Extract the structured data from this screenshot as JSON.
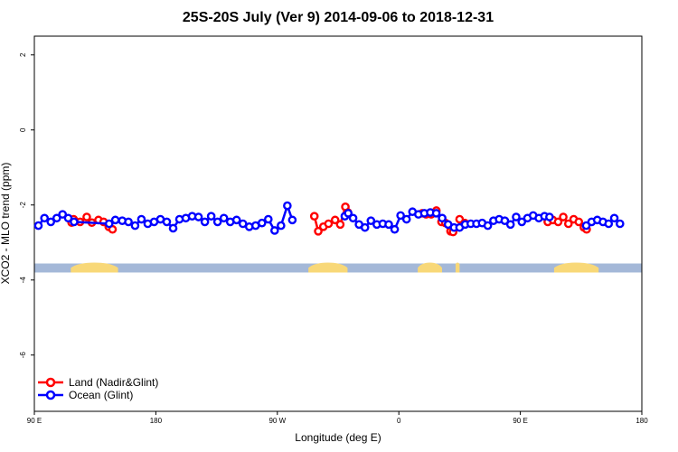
{
  "chart_data": {
    "type": "line",
    "title": "25S-20S July (Ver 9)   2014-09-06 to 2018-12-31",
    "xlabel": "Longitude (deg E)",
    "ylabel": "XCO2 - MLO trend (ppm)",
    "xlim": [
      90,
      540
    ],
    "ylim": [
      -7.5,
      2.5
    ],
    "x_ticks": [
      {
        "value": 90,
        "label": "90 E"
      },
      {
        "value": 180,
        "label": "180"
      },
      {
        "value": 270,
        "label": "90 W"
      },
      {
        "value": 360,
        "label": "0"
      },
      {
        "value": 450,
        "label": "90 E"
      },
      {
        "value": 540,
        "label": "180"
      }
    ],
    "y_ticks": [
      {
        "value": 2,
        "label": "2"
      },
      {
        "value": 0,
        "label": "0"
      },
      {
        "value": -2,
        "label": "-2"
      },
      {
        "value": -4,
        "label": "-4"
      },
      {
        "value": -6,
        "label": "-6"
      }
    ],
    "grid": false,
    "legend_position": "bottom-left",
    "land_ocean_strip": {
      "y_range": [
        -3.8,
        -3.56
      ],
      "ocean_color": "#a4b8d8",
      "land_color": "#f8d878",
      "land_segments": [
        [
          117,
          152
        ],
        [
          293,
          322
        ],
        [
          374,
          392
        ],
        [
          402,
          405
        ],
        [
          475,
          508
        ]
      ]
    },
    "series": [
      {
        "name": "Land (Nadir&Glint)",
        "color": "#ff0000",
        "segments": [
          [
            [
              117.6,
              -2.47
            ],
            [
              119.1,
              -2.38
            ],
            [
              123.9,
              -2.45
            ],
            [
              128.8,
              -2.32
            ],
            [
              132.6,
              -2.47
            ],
            [
              137.5,
              -2.4
            ],
            [
              141.3,
              -2.45
            ],
            [
              145.1,
              -2.58
            ],
            [
              147.9,
              -2.65
            ]
          ],
          [
            [
              297.4,
              -2.3
            ],
            [
              300.3,
              -2.7
            ],
            [
              304.1,
              -2.58
            ],
            [
              307.9,
              -2.5
            ],
            [
              312.8,
              -2.4
            ],
            [
              316.6,
              -2.52
            ],
            [
              320.4,
              -2.05
            ],
            [
              322.3,
              -2.2
            ]
          ],
          [
            [
              377.3,
              -2.22
            ],
            [
              380.2,
              -2.25
            ],
            [
              384.0,
              -2.25
            ],
            [
              387.8,
              -2.15
            ],
            [
              391.6,
              -2.45
            ],
            [
              394.5,
              -2.48
            ],
            [
              398.3,
              -2.7
            ],
            [
              400.2,
              -2.72
            ]
          ],
          [
            [
              405.0,
              -2.38
            ],
            [
              408.8,
              -2.48
            ]
          ],
          [
            [
              470.3,
              -2.45
            ],
            [
              474.1,
              -2.4
            ],
            [
              478.0,
              -2.45
            ],
            [
              481.8,
              -2.32
            ],
            [
              485.6,
              -2.5
            ],
            [
              489.5,
              -2.38
            ],
            [
              493.3,
              -2.45
            ],
            [
              497.1,
              -2.6
            ],
            [
              499.1,
              -2.65
            ]
          ]
        ]
      },
      {
        "name": "Ocean (Glint)",
        "color": "#0000ff",
        "segments": [
          [
            [
              93.0,
              -2.55
            ],
            [
              97.5,
              -2.35
            ],
            [
              102.2,
              -2.45
            ],
            [
              106.6,
              -2.35
            ],
            [
              110.9,
              -2.25
            ],
            [
              115.1,
              -2.35
            ],
            [
              119.4,
              -2.45
            ],
            [
              145.4,
              -2.5
            ],
            [
              150.0,
              -2.4
            ],
            [
              155.1,
              -2.42
            ],
            [
              159.7,
              -2.45
            ],
            [
              164.6,
              -2.55
            ],
            [
              169.3,
              -2.38
            ],
            [
              174.0,
              -2.5
            ],
            [
              178.7,
              -2.45
            ],
            [
              183.4,
              -2.38
            ],
            [
              188.1,
              -2.45
            ],
            [
              192.8,
              -2.62
            ],
            [
              197.5,
              -2.38
            ],
            [
              202.2,
              -2.35
            ],
            [
              206.9,
              -2.3
            ],
            [
              211.6,
              -2.32
            ],
            [
              216.3,
              -2.45
            ],
            [
              221.0,
              -2.3
            ],
            [
              225.7,
              -2.45
            ],
            [
              230.4,
              -2.35
            ],
            [
              235.1,
              -2.45
            ],
            [
              239.8,
              -2.4
            ],
            [
              244.5,
              -2.5
            ],
            [
              249.2,
              -2.58
            ],
            [
              253.9,
              -2.55
            ],
            [
              258.6,
              -2.48
            ],
            [
              263.3,
              -2.38
            ],
            [
              268.0,
              -2.68
            ],
            [
              272.7,
              -2.55
            ],
            [
              277.4,
              -2.02
            ],
            [
              281.1,
              -2.4
            ]
          ],
          [
            [
              320.0,
              -2.3
            ],
            [
              322.5,
              -2.22
            ],
            [
              326.1,
              -2.35
            ],
            [
              330.5,
              -2.52
            ],
            [
              334.9,
              -2.6
            ],
            [
              339.3,
              -2.42
            ],
            [
              343.7,
              -2.52
            ],
            [
              348.1,
              -2.5
            ],
            [
              352.5,
              -2.52
            ],
            [
              356.9,
              -2.65
            ],
            [
              361.3,
              -2.28
            ],
            [
              365.7,
              -2.38
            ],
            [
              370.1,
              -2.18
            ],
            [
              374.5,
              -2.25
            ],
            [
              378.9,
              -2.22
            ],
            [
              383.3,
              -2.2
            ],
            [
              387.7,
              -2.22
            ],
            [
              392.1,
              -2.35
            ],
            [
              396.5,
              -2.52
            ],
            [
              400.9,
              -2.6
            ],
            [
              405.0,
              -2.6
            ],
            [
              409.1,
              -2.52
            ],
            [
              413.3,
              -2.5
            ],
            [
              417.5,
              -2.5
            ],
            [
              421.7,
              -2.48
            ],
            [
              425.9,
              -2.55
            ],
            [
              430.1,
              -2.42
            ],
            [
              434.3,
              -2.38
            ],
            [
              438.5,
              -2.42
            ],
            [
              442.7,
              -2.52
            ],
            [
              446.9,
              -2.32
            ],
            [
              451.1,
              -2.45
            ],
            [
              455.3,
              -2.35
            ],
            [
              459.5,
              -2.28
            ],
            [
              463.7,
              -2.35
            ],
            [
              467.9,
              -2.3
            ],
            [
              471.6,
              -2.32
            ]
          ],
          [
            [
              498.8,
              -2.55
            ],
            [
              502.8,
              -2.45
            ],
            [
              507.0,
              -2.4
            ],
            [
              511.2,
              -2.45
            ],
            [
              515.4,
              -2.5
            ],
            [
              519.6,
              -2.35
            ],
            [
              523.8,
              -2.5
            ]
          ]
        ]
      }
    ]
  }
}
